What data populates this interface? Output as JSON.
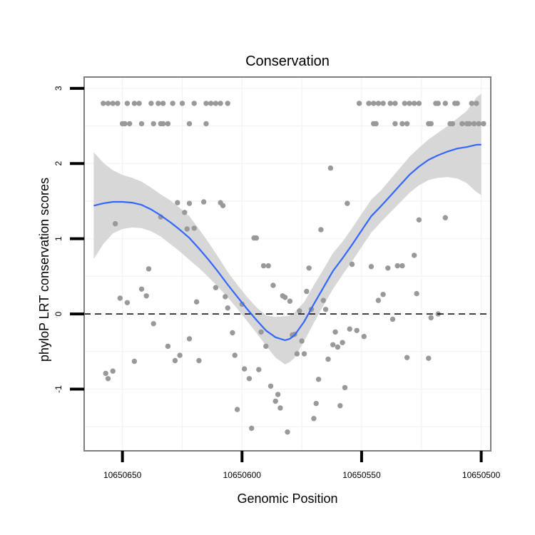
{
  "chart_data": {
    "type": "scatter",
    "title": "Conservation",
    "xlabel": "Genomic Position",
    "ylabel": "phyloP LRT conservation scores",
    "x_reversed": true,
    "xlim": [
      10650666,
      10650496
    ],
    "ylim": [
      -1.82,
      3.15
    ],
    "x_ticks": [
      {
        "value": 10650650,
        "label": "10650650"
      },
      {
        "value": 10650600,
        "label": "10650600"
      },
      {
        "value": 10650550,
        "label": "10650550"
      },
      {
        "value": 10650500,
        "label": "10650500"
      }
    ],
    "y_ticks": [
      {
        "value": -1,
        "label": "-1"
      },
      {
        "value": 0,
        "label": "0"
      },
      {
        "value": 1,
        "label": "1"
      },
      {
        "value": 2,
        "label": "2"
      },
      {
        "value": 3,
        "label": "3"
      }
    ],
    "grid": true,
    "reference_line": {
      "y": 0,
      "style": "dashed",
      "color": "#000000"
    },
    "colors": {
      "points": "#999999",
      "smooth": "#3366FF",
      "band": "#D3D3D3",
      "panel_border": "#7F7F7F",
      "grid": "#F2F2F2"
    },
    "series": [
      {
        "type": "points",
        "points": [
          [
            10650658,
            2.8
          ],
          [
            10650656,
            2.8
          ],
          [
            10650654,
            2.8
          ],
          [
            10650652,
            2.8
          ],
          [
            10650648,
            2.8
          ],
          [
            10650645,
            2.8
          ],
          [
            10650643,
            2.8
          ],
          [
            10650638,
            2.8
          ],
          [
            10650635,
            2.8
          ],
          [
            10650633,
            2.8
          ],
          [
            10650629,
            2.8
          ],
          [
            10650625,
            2.8
          ],
          [
            10650620,
            2.8
          ],
          [
            10650615,
            2.8
          ],
          [
            10650613,
            2.8
          ],
          [
            10650611,
            2.8
          ],
          [
            10650609,
            2.8
          ],
          [
            10650606,
            2.8
          ],
          [
            10650650,
            2.53
          ],
          [
            10650649,
            2.53
          ],
          [
            10650647,
            2.53
          ],
          [
            10650642,
            2.53
          ],
          [
            10650637,
            2.53
          ],
          [
            10650634,
            2.53
          ],
          [
            10650633,
            2.53
          ],
          [
            10650631,
            2.53
          ],
          [
            10650622,
            2.53
          ],
          [
            10650615,
            2.53
          ],
          [
            10650551,
            2.8
          ],
          [
            10650547,
            2.8
          ],
          [
            10650545,
            2.8
          ],
          [
            10650543,
            2.8
          ],
          [
            10650541,
            2.8
          ],
          [
            10650538,
            2.8
          ],
          [
            10650536,
            2.8
          ],
          [
            10650532,
            2.8
          ],
          [
            10650530,
            2.8
          ],
          [
            10650528,
            2.8
          ],
          [
            10650526,
            2.8
          ],
          [
            10650519,
            2.8
          ],
          [
            10650518,
            2.8
          ],
          [
            10650515,
            2.8
          ],
          [
            10650511,
            2.8
          ],
          [
            10650510,
            2.8
          ],
          [
            10650504,
            2.8
          ],
          [
            10650502,
            2.8
          ],
          [
            10650545,
            2.53
          ],
          [
            10650544,
            2.53
          ],
          [
            10650536,
            2.53
          ],
          [
            10650533,
            2.53
          ],
          [
            10650531,
            2.53
          ],
          [
            10650522,
            2.53
          ],
          [
            10650521,
            2.53
          ],
          [
            10650513,
            2.53
          ],
          [
            10650512,
            2.53
          ],
          [
            10650508,
            2.53
          ],
          [
            10650506,
            2.53
          ],
          [
            10650505,
            2.53
          ],
          [
            10650503,
            2.53
          ],
          [
            10650501,
            2.53
          ],
          [
            10650499,
            2.53
          ],
          [
            10650657,
            -0.79
          ],
          [
            10650656,
            -0.86
          ],
          [
            10650654,
            -0.76
          ],
          [
            10650653,
            1.2
          ],
          [
            10650651,
            0.21
          ],
          [
            10650648,
            0.15
          ],
          [
            10650645,
            -0.63
          ],
          [
            10650642,
            0.33
          ],
          [
            10650640,
            0.24
          ],
          [
            10650639,
            0.6
          ],
          [
            10650637,
            -0.13
          ],
          [
            10650634,
            1.29
          ],
          [
            10650631,
            -0.43
          ],
          [
            10650628,
            -0.62
          ],
          [
            10650627,
            1.48
          ],
          [
            10650626,
            -0.55
          ],
          [
            10650624,
            1.35
          ],
          [
            10650623,
            1.13
          ],
          [
            10650622,
            -0.33
          ],
          [
            10650622,
            1.47
          ],
          [
            10650620,
            1.14
          ],
          [
            10650619,
            0.16
          ],
          [
            10650618,
            -0.62
          ],
          [
            10650616,
            1.49
          ],
          [
            10650611,
            0.35
          ],
          [
            10650609,
            1.48
          ],
          [
            10650608,
            1.44
          ],
          [
            10650607,
            0.23
          ],
          [
            10650606,
            0.08
          ],
          [
            10650604,
            -0.25
          ],
          [
            10650603,
            -0.55
          ],
          [
            10650602,
            -1.27
          ],
          [
            10650600,
            0.13
          ],
          [
            10650599,
            -0.73
          ],
          [
            10650597,
            -0.86
          ],
          [
            10650596,
            -1.52
          ],
          [
            10650595,
            1.01
          ],
          [
            10650594,
            1.01
          ],
          [
            10650593,
            -0.74
          ],
          [
            10650592,
            -0.24
          ],
          [
            10650591,
            0.64
          ],
          [
            10650590,
            -0.43
          ],
          [
            10650589,
            0.64
          ],
          [
            10650588,
            -0.96
          ],
          [
            10650587,
            0.38
          ],
          [
            10650586,
            -1.16
          ],
          [
            10650585,
            -1.07
          ],
          [
            10650584,
            -1.25
          ],
          [
            10650583,
            0.24
          ],
          [
            10650582,
            0.22
          ],
          [
            10650581,
            -1.57
          ],
          [
            10650580,
            0.17
          ],
          [
            10650579,
            -0.28
          ],
          [
            10650578,
            -0.27
          ],
          [
            10650577,
            -0.53
          ],
          [
            10650576,
            0.04
          ],
          [
            10650575,
            -0.36
          ],
          [
            10650574,
            -0.53
          ],
          [
            10650573,
            0.3
          ],
          [
            10650572,
            0.61
          ],
          [
            10650571,
            0.06
          ],
          [
            10650570,
            -1.39
          ],
          [
            10650569,
            -1.19
          ],
          [
            10650568,
            -0.87
          ],
          [
            10650567,
            1.12
          ],
          [
            10650566,
            0.18
          ],
          [
            10650565,
            0.06
          ],
          [
            10650564,
            -0.6
          ],
          [
            10650563,
            1.94
          ],
          [
            10650562,
            -0.41
          ],
          [
            10650561,
            -0.24
          ],
          [
            10650560,
            -0.44
          ],
          [
            10650559,
            -1.22
          ],
          [
            10650558,
            -0.38
          ],
          [
            10650557,
            -0.98
          ],
          [
            10650556,
            1.47
          ],
          [
            10650555,
            -0.2
          ],
          [
            10650554,
            0.66
          ],
          [
            10650552,
            -0.22
          ],
          [
            10650549,
            -0.3
          ],
          [
            10650546,
            0.63
          ],
          [
            10650543,
            0.18
          ],
          [
            10650541,
            0.26
          ],
          [
            10650539,
            0.61
          ],
          [
            10650537,
            -0.07
          ],
          [
            10650535,
            0.64
          ],
          [
            10650533,
            0.64
          ],
          [
            10650531,
            -0.58
          ],
          [
            10650528,
            0.78
          ],
          [
            10650527,
            0.27
          ],
          [
            10650526,
            1.25
          ],
          [
            10650522,
            -0.59
          ],
          [
            10650521,
            -0.05
          ],
          [
            10650518,
            0.0
          ],
          [
            10650515,
            1.28
          ]
        ]
      },
      {
        "type": "smooth",
        "x": [
          10650662,
          10650658,
          10650654,
          10650650,
          10650646,
          10650642,
          10650638,
          10650634,
          10650630,
          10650626,
          10650622,
          10650618,
          10650614,
          10650610,
          10650606,
          10650602,
          10650598,
          10650594,
          10650590,
          10650586,
          10650582,
          10650580,
          10650578,
          10650574,
          10650570,
          10650566,
          10650562,
          10650558,
          10650554,
          10650550,
          10650546,
          10650542,
          10650538,
          10650534,
          10650530,
          10650526,
          10650522,
          10650518,
          10650514,
          10650510,
          10650506,
          10650502,
          10650500
        ],
        "fit": [
          1.44,
          1.47,
          1.49,
          1.49,
          1.48,
          1.45,
          1.39,
          1.31,
          1.22,
          1.12,
          1.01,
          0.87,
          0.72,
          0.56,
          0.39,
          0.23,
          0.07,
          -0.08,
          -0.22,
          -0.31,
          -0.35,
          -0.33,
          -0.28,
          -0.1,
          0.13,
          0.35,
          0.57,
          0.74,
          0.92,
          1.11,
          1.3,
          1.43,
          1.57,
          1.71,
          1.85,
          1.96,
          2.05,
          2.11,
          2.16,
          2.2,
          2.22,
          2.25,
          2.25
        ],
        "lower": [
          0.73,
          0.93,
          1.07,
          1.13,
          1.15,
          1.14,
          1.1,
          1.03,
          0.93,
          0.83,
          0.72,
          0.61,
          0.49,
          0.36,
          0.22,
          0.07,
          -0.09,
          -0.25,
          -0.42,
          -0.58,
          -0.67,
          -0.64,
          -0.58,
          -0.36,
          -0.12,
          0.11,
          0.33,
          0.52,
          0.7,
          0.89,
          1.08,
          1.22,
          1.35,
          1.48,
          1.61,
          1.71,
          1.78,
          1.81,
          1.82,
          1.8,
          1.74,
          1.62,
          1.58
        ],
        "upper": [
          2.15,
          2.01,
          1.91,
          1.85,
          1.81,
          1.76,
          1.68,
          1.59,
          1.51,
          1.41,
          1.3,
          1.13,
          0.95,
          0.76,
          0.56,
          0.39,
          0.23,
          0.09,
          -0.02,
          -0.04,
          -0.03,
          -0.02,
          0.02,
          0.16,
          0.38,
          0.59,
          0.81,
          0.96,
          1.14,
          1.33,
          1.52,
          1.64,
          1.79,
          1.94,
          2.09,
          2.21,
          2.32,
          2.41,
          2.5,
          2.6,
          2.7,
          2.88,
          2.93
        ]
      }
    ]
  }
}
